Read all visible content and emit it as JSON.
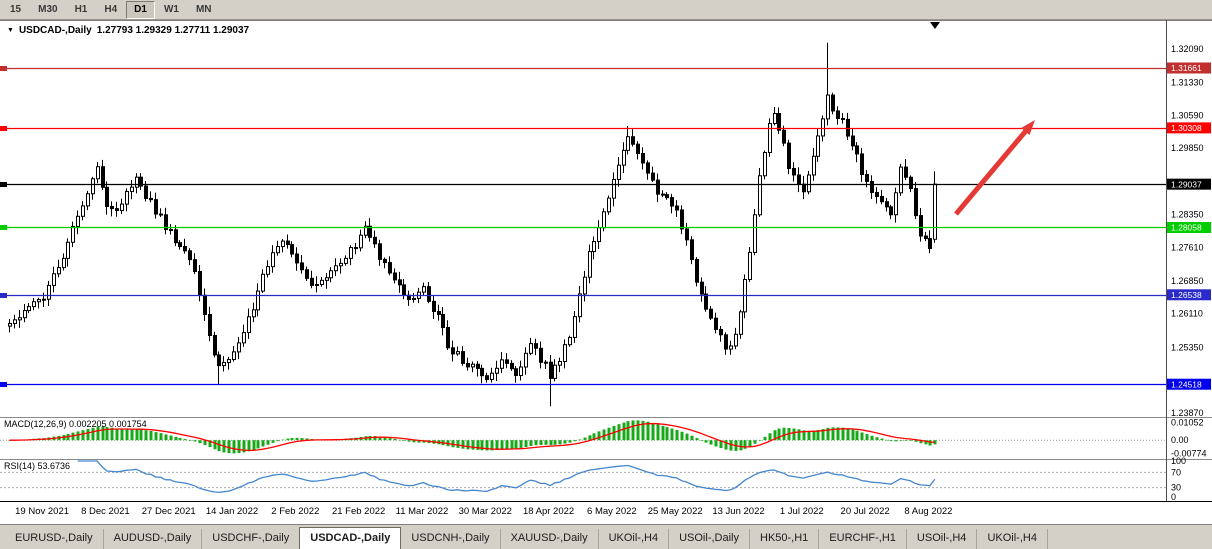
{
  "toolbar": {
    "timeframes": [
      {
        "label": "15",
        "active": false
      },
      {
        "label": "M30",
        "active": false
      },
      {
        "label": "H1",
        "active": false
      },
      {
        "label": "H4",
        "active": false
      },
      {
        "label": "D1",
        "active": true
      },
      {
        "label": "W1",
        "active": false
      },
      {
        "label": "MN",
        "active": false
      }
    ]
  },
  "chart": {
    "title": "USDCAD-,Daily",
    "ohlc_text": "1.27793 1.29329 1.27711 1.29037"
  },
  "chart_data": {
    "type": "candlestick",
    "symbol": "USDCAD",
    "timeframe": "Daily",
    "current_bar": {
      "open": 1.27793,
      "high": 1.29329,
      "low": 1.27711,
      "close": 1.29037
    },
    "price_range": {
      "max": 1.327,
      "min": 1.238
    },
    "candles_count": 191,
    "seed": 20220819,
    "x_labels": [
      "19 Nov 2021",
      "8 Dec 2021",
      "27 Dec 2021",
      "14 Jan 2022",
      "2 Feb 2022",
      "21 Feb 2022",
      "11 Mar 2022",
      "30 Mar 2022",
      "18 Apr 2022",
      "6 May 2022",
      "25 May 2022",
      "13 Jun 2022",
      "1 Jul 2022",
      "20 Jul 2022",
      "8 Aug 2022"
    ],
    "y_axis_ticks": [
      {
        "label": "1.32090",
        "value": 1.3209
      },
      {
        "label": "1.31330",
        "value": 1.3133
      },
      {
        "label": "1.30590",
        "value": 1.3059
      },
      {
        "label": "1.29850",
        "value": 1.2985
      },
      {
        "label": "1.28350",
        "value": 1.2835
      },
      {
        "label": "1.27610",
        "value": 1.2761
      },
      {
        "label": "1.26850",
        "value": 1.2685
      },
      {
        "label": "1.26110",
        "value": 1.2611
      },
      {
        "label": "1.25350",
        "value": 1.2535
      },
      {
        "label": "1.23870",
        "value": 1.2387
      }
    ],
    "hlines": [
      {
        "label": "1.31661",
        "value": 1.31661,
        "color": "#c22f2f"
      },
      {
        "label": "1.30308",
        "value": 1.30308,
        "color": "#ff0000"
      },
      {
        "label": "1.29037",
        "value": 1.29037,
        "color": "#000000"
      },
      {
        "label": "1.28058",
        "value": 1.28058,
        "color": "#00ce00"
      },
      {
        "label": "1.26538",
        "value": 1.26538,
        "color": "#2a2ac8"
      },
      {
        "label": "1.24518",
        "value": 1.24518,
        "color": "#0000ee"
      }
    ],
    "close_waypoints": [
      [
        0,
        1.26
      ],
      [
        4,
        1.2625
      ],
      [
        7,
        1.265
      ],
      [
        10,
        1.272
      ],
      [
        13,
        1.28
      ],
      [
        16,
        1.288
      ],
      [
        18,
        1.2935
      ],
      [
        20,
        1.286
      ],
      [
        22,
        1.2845
      ],
      [
        24,
        1.289
      ],
      [
        26,
        1.2915
      ],
      [
        29,
        1.286
      ],
      [
        33,
        1.279
      ],
      [
        36,
        1.276
      ],
      [
        38,
        1.271
      ],
      [
        40,
        1.26
      ],
      [
        43,
        1.2485
      ],
      [
        45,
        1.251
      ],
      [
        47,
        1.2555
      ],
      [
        50,
        1.262
      ],
      [
        52,
        1.269
      ],
      [
        54,
        1.274
      ],
      [
        56,
        1.2775
      ],
      [
        59,
        1.272
      ],
      [
        62,
        1.2675
      ],
      [
        65,
        1.27
      ],
      [
        68,
        1.2725
      ],
      [
        71,
        1.277
      ],
      [
        73,
        1.28
      ],
      [
        75,
        1.276
      ],
      [
        78,
        1.2695
      ],
      [
        82,
        1.2638
      ],
      [
        85,
        1.2665
      ],
      [
        88,
        1.26
      ],
      [
        90,
        1.254
      ],
      [
        93,
        1.2505
      ],
      [
        95,
        1.249
      ],
      [
        98,
        1.2462
      ],
      [
        101,
        1.2505
      ],
      [
        104,
        1.2478
      ],
      [
        107,
        1.2545
      ],
      [
        109,
        1.251
      ],
      [
        111,
        1.2472
      ],
      [
        113,
        1.2505
      ],
      [
        115,
        1.2565
      ],
      [
        117,
        1.265
      ],
      [
        119,
        1.2755
      ],
      [
        121,
        1.2815
      ],
      [
        123,
        1.288
      ],
      [
        125,
        1.2945
      ],
      [
        127,
        1.3005
      ],
      [
        129,
        1.2975
      ],
      [
        131,
        1.2935
      ],
      [
        133,
        1.289
      ],
      [
        135,
        1.2865
      ],
      [
        137,
        1.284
      ],
      [
        139,
        1.277
      ],
      [
        141,
        1.269
      ],
      [
        143,
        1.2625
      ],
      [
        145,
        1.257
      ],
      [
        147,
        1.2535
      ],
      [
        148,
        1.2528
      ],
      [
        150,
        1.2605
      ],
      [
        152,
        1.276
      ],
      [
        154,
        1.293
      ],
      [
        156,
        1.303
      ],
      [
        157,
        1.3058
      ],
      [
        159,
        1.299
      ],
      [
        160,
        1.2935
      ],
      [
        162,
        1.29
      ],
      [
        163,
        1.289
      ],
      [
        165,
        1.2975
      ],
      [
        166,
        1.3015
      ],
      [
        168,
        1.31
      ],
      [
        170,
        1.306
      ],
      [
        172,
        1.302
      ],
      [
        173,
        1.299
      ],
      [
        175,
        1.2935
      ],
      [
        176,
        1.2905
      ],
      [
        178,
        1.2875
      ],
      [
        179,
        1.2862
      ],
      [
        181,
        1.2835
      ],
      [
        183,
        1.2952
      ],
      [
        185,
        1.2888
      ],
      [
        187,
        1.2782
      ],
      [
        189,
        1.2768
      ],
      [
        190,
        1.2904
      ]
    ],
    "candle_overrides": {
      "43": {
        "low": 1.245
      },
      "111": {
        "low": 1.2402
      },
      "127": {
        "high": 1.3035
      },
      "148": {
        "low": 1.2518
      },
      "157": {
        "high": 1.3078
      },
      "168": {
        "high": 1.3223
      },
      "190": {
        "open": 1.27793,
        "high": 1.29329,
        "low": 1.27711,
        "close": 1.29037
      }
    },
    "indicators": {
      "macd": {
        "label": "MACD(12,26,9)",
        "values_text": "0.002205 0.001754",
        "range": {
          "max": 0.0125,
          "min": -0.0105
        },
        "axis": [
          {
            "label": "0.01052",
            "value": 0.01052
          },
          {
            "label": "0.00",
            "value": 0.0
          },
          {
            "label": "-0.00774",
            "value": -0.00774
          }
        ],
        "histogram_color": "#17a917",
        "signal_color": "#ff0000"
      },
      "rsi": {
        "label": "RSI(14)",
        "value_text": "53.6736",
        "axis": [
          {
            "label": "100",
            "value": 100
          },
          {
            "label": "70",
            "value": 70
          },
          {
            "label": "30",
            "value": 30
          },
          {
            "label": "0",
            "value": 0
          }
        ],
        "levels": [
          70,
          30
        ],
        "line_color": "#4486d0"
      }
    },
    "annotations": [
      {
        "type": "arrow",
        "color": "#e53935",
        "from": [
          956,
          194
        ],
        "to": [
          1035,
          100
        ]
      }
    ]
  },
  "tabs": [
    {
      "label": "EURUSD-,Daily",
      "active": false
    },
    {
      "label": "AUDUSD-,Daily",
      "active": false
    },
    {
      "label": "USDCHF-,Daily",
      "active": false
    },
    {
      "label": "USDCAD-,Daily",
      "active": true
    },
    {
      "label": "USDCNH-,Daily",
      "active": false
    },
    {
      "label": "XAUUSD-,Daily",
      "active": false
    },
    {
      "label": "UKOil-,H4",
      "active": false
    },
    {
      "label": "USOil-,Daily",
      "active": false
    },
    {
      "label": "HK50-,H1",
      "active": false
    },
    {
      "label": "EURCHF-,H1",
      "active": false
    },
    {
      "label": "USOil-,H4",
      "active": false
    },
    {
      "label": "UKOil-,H4",
      "active": false
    }
  ]
}
